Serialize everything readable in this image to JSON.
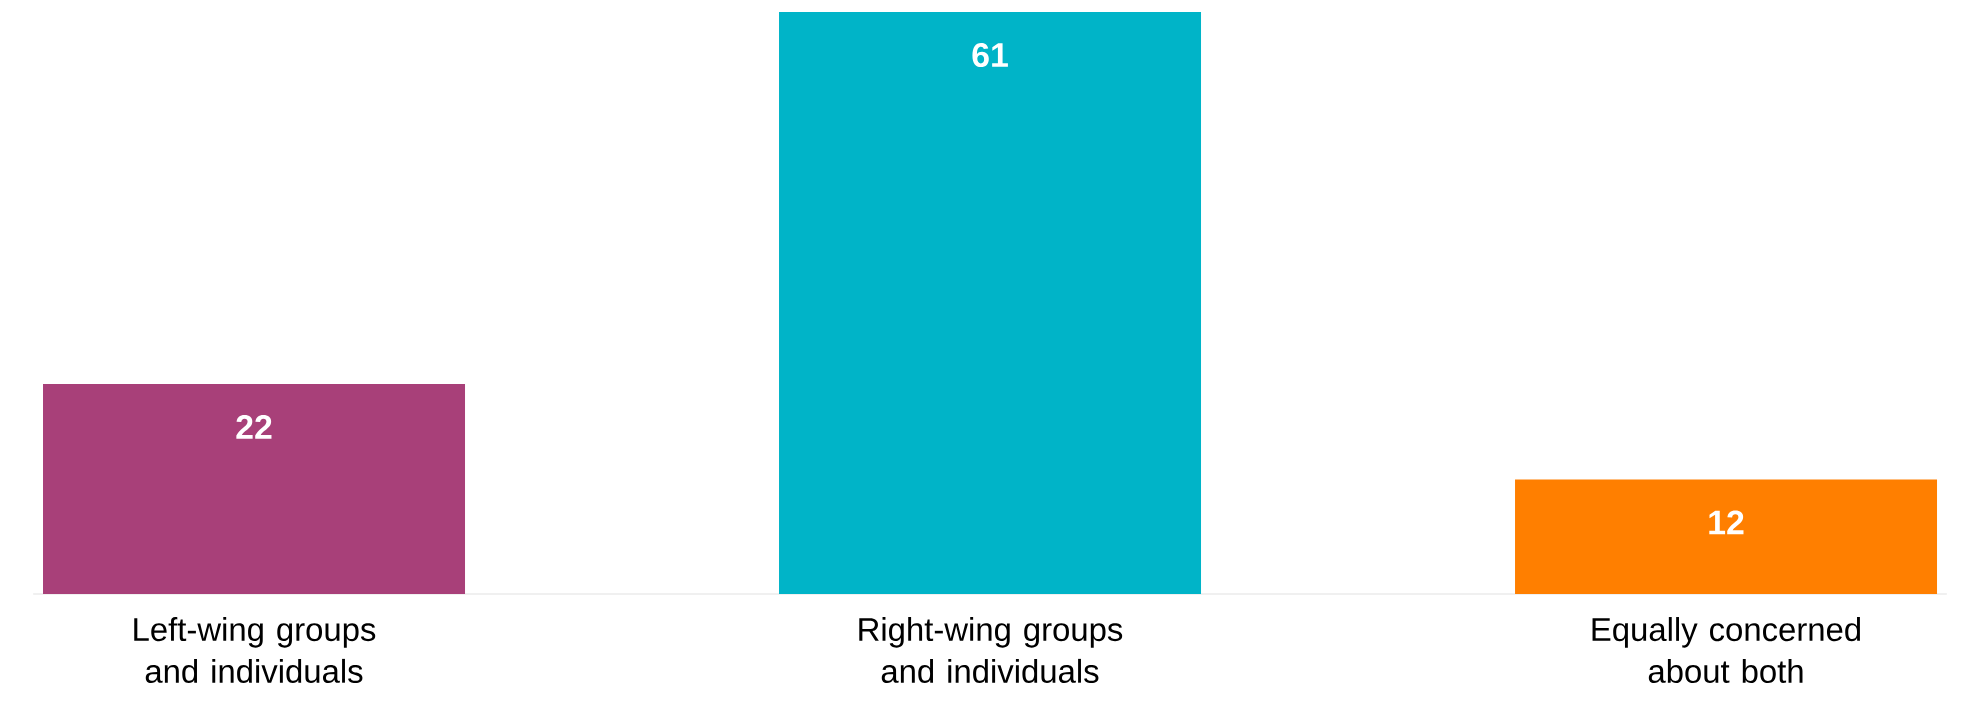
{
  "chart_data": {
    "type": "bar",
    "categories": [
      "Left-wing groups and individuals",
      "Right-wing groups and individuals",
      "Equally concerned about both"
    ],
    "values": [
      22,
      61,
      12
    ],
    "colors": [
      "#a84079",
      "#00b4c8",
      "#ff7f00"
    ],
    "data_labels": true
  }
}
